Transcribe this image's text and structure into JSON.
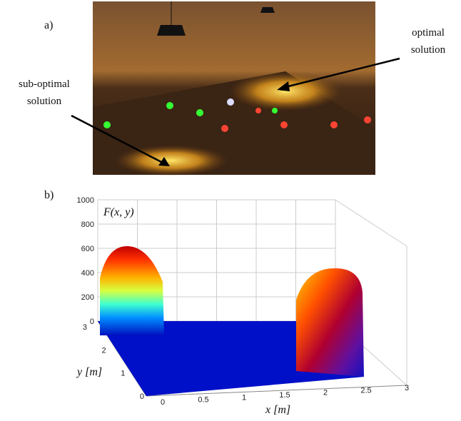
{
  "panel_a": {
    "label": "a)",
    "annotations": [
      {
        "lines": [
          "optimal",
          "solution"
        ]
      },
      {
        "lines": [
          "sub-optimal",
          "solution"
        ]
      }
    ]
  },
  "panel_b": {
    "label": "b)",
    "z_label": "F(x, y)",
    "y_label": "y [m]",
    "x_label": "x [m]",
    "zticks": [
      1000,
      800,
      600,
      400,
      200,
      0
    ],
    "yticks": [
      3,
      2,
      1,
      0
    ],
    "xticks": [
      0,
      0.5,
      1,
      1.5,
      2,
      2.5,
      3
    ]
  }
}
